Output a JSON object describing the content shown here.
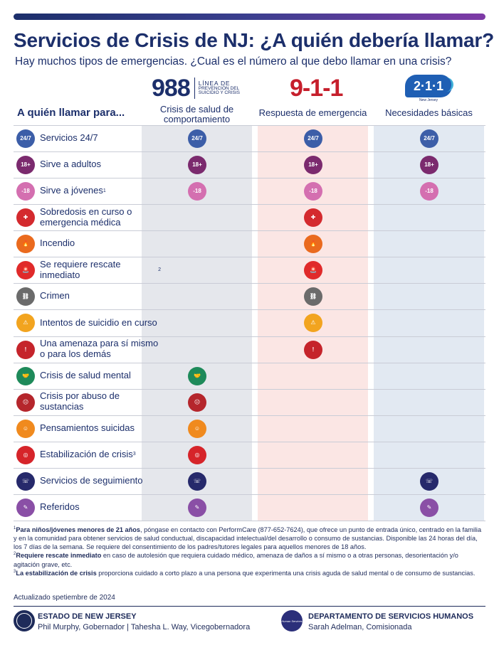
{
  "title": "Servicios de Crisis de NJ: ¿A quién debería llamar?",
  "subtitle": "Hay muchos tipos de emergencias. ¿Cual es el número al que debo llamar en una crisis?",
  "row_header": "A quién llamar para...",
  "columns": [
    {
      "key": "988",
      "logo_number": "988",
      "logo_text_top": "LÍNEA DE",
      "logo_text_bottom": "PREVENCIÓN DEL SUICIDIO Y CRISIS",
      "label": "Crisis de salud de comportamiento"
    },
    {
      "key": "911",
      "logo_number": "9-1-1",
      "label": "Respuesta de emergencia"
    },
    {
      "key": "211",
      "logo_number": "2·1·1",
      "logo_sub": "New Jersey",
      "label": "Necesidades básicas"
    }
  ],
  "rows": [
    {
      "label": "Servicios 24/7",
      "icon": "clock-24-7-icon",
      "glyph": "24/7",
      "color": "#3c5ea8",
      "cols": [
        "988",
        "911",
        "211"
      ]
    },
    {
      "label": "Sirve a adultos",
      "icon": "adults-18-plus-icon",
      "glyph": "18+",
      "color": "#7b2a6e",
      "cols": [
        "988",
        "911",
        "211"
      ]
    },
    {
      "label": "Sirve a jóvenes",
      "footnote": "1",
      "icon": "youth-under-18-icon",
      "glyph": "-18",
      "color": "#d46fb0",
      "cols": [
        "988",
        "911",
        "211"
      ]
    },
    {
      "label": "Sobredosis en curso o emergencia médica",
      "icon": "medical-cross-icon",
      "glyph": "✚",
      "color": "#d42a2e",
      "cols": [
        "911"
      ]
    },
    {
      "label": "Incendio",
      "icon": "fire-icon",
      "glyph": "🔥",
      "color": "#ea6a1e",
      "cols": [
        "911"
      ]
    },
    {
      "label": "Se requiere rescate inmediato",
      "footnote": "2",
      "icon": "siren-icon",
      "glyph": "🚨",
      "color": "#e02a2a",
      "cols": [
        "911"
      ]
    },
    {
      "label": "Crimen",
      "icon": "handcuffs-icon",
      "glyph": "⛓",
      "color": "#6b6b6b",
      "cols": [
        "911"
      ]
    },
    {
      "label": "Intentos de suicidio en curso",
      "icon": "warning-person-icon",
      "glyph": "⚠",
      "color": "#f2a41f",
      "cols": [
        "911"
      ]
    },
    {
      "label": "Una amenaza para sí mismo o para los demás",
      "icon": "alert-triangle-icon",
      "glyph": "!",
      "color": "#c5242b",
      "cols": [
        "911"
      ]
    },
    {
      "label": "Crisis de salud mental",
      "icon": "helping-hands-icon",
      "glyph": "🤝",
      "color": "#1e8a5a",
      "cols": [
        "988"
      ]
    },
    {
      "label": "Crisis por abuso de sustancias",
      "icon": "substance-person-icon",
      "glyph": "☹",
      "color": "#b5262c",
      "cols": [
        "988"
      ]
    },
    {
      "label": "Pensamientos suicidas",
      "icon": "thought-head-icon",
      "glyph": "☺",
      "color": "#f08a1e",
      "cols": [
        "988"
      ]
    },
    {
      "label": "Estabilización de crisis",
      "footnote": "3",
      "icon": "lifebuoy-icon",
      "glyph": "◎",
      "color": "#d6242a",
      "cols": [
        "988"
      ]
    },
    {
      "label": "Servicios de seguimiento",
      "icon": "follow-up-icon",
      "glyph": "☏",
      "color": "#26296b",
      "cols": [
        "988",
        "211"
      ]
    },
    {
      "label": "Referidos",
      "icon": "referral-document-icon",
      "glyph": "✎",
      "color": "#8a4fa6",
      "cols": [
        "988",
        "211"
      ]
    }
  ],
  "footnotes": [
    {
      "num": "1",
      "bold": "Para niños/jóvenes menores de 21 años",
      "text": ", póngase en contacto con PerformCare (877-652-7624), que ofrece un punto de entrada único, centrado en la familia y en la comunidad para obtener servicios de salud conductual, discapacidad intelectual/del desarrollo o consumo de sustancias. Disponible las 24 horas del día, los 7 días de la semana. Se requiere del consentimiento de los padres/tutores legales para aquellos menores de 18 años."
    },
    {
      "num": "2",
      "bold": "Requiere rescate inmediato",
      "text": " en caso de autolesión que requiera cuidado médico, amenaza de daños a sí mismo o a otras personas, desorientación y/o agitación grave, etc."
    },
    {
      "num": "3",
      "bold": "La estabilización de crisis",
      "text": " proporciona cuidado a corto plazo a una persona que experimenta una crisis aguda de salud mental o de consumo de sustancias."
    }
  ],
  "updated": "Actualizado spetiembre de 2024",
  "footer": {
    "state_title": "ESTADO DE NEW JERSEY",
    "state_people": "Phil Murphy, Gobernador | Tahesha L. Way, Vicegobernadora",
    "dept_logo_text": "Human Services",
    "dept_title": "DEPARTAMENTO DE SERVICIOS HUMANOS",
    "dept_people": "Sarah Adelman, Comisionada"
  }
}
